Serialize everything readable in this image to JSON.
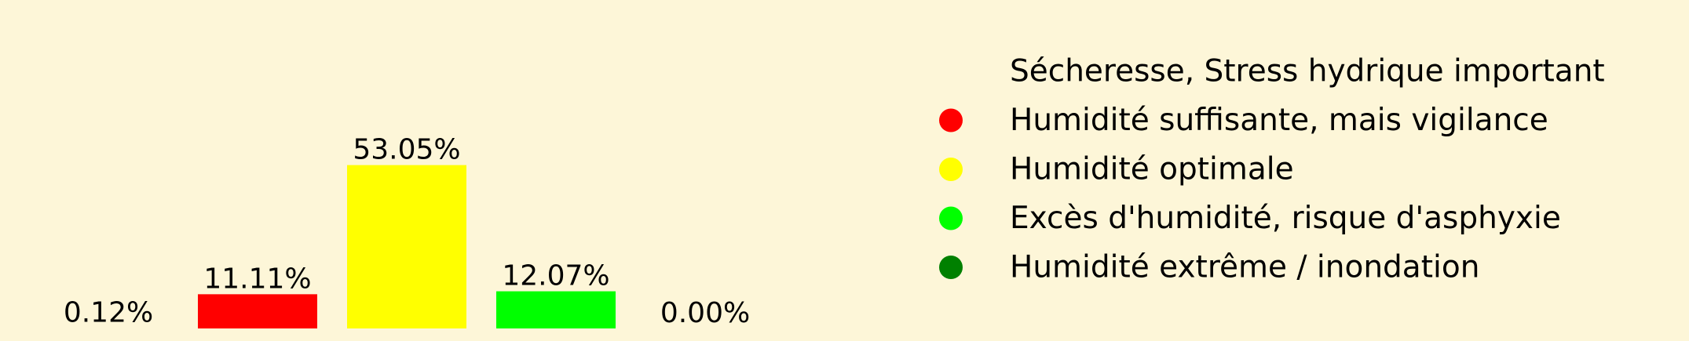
{
  "chart_data": {
    "type": "bar",
    "categories": [
      "Sécheresse, Stress hydrique important",
      "Humidité suffisante, mais vigilance",
      "Humidité optimale",
      "Excès d'humidité, risque d'asphyxie",
      "Humidité extrême / inondation"
    ],
    "values": [
      0.12,
      11.11,
      53.05,
      12.07,
      0.0
    ],
    "value_labels": [
      "0.12%",
      "11.11%",
      "53.05%",
      "12.07%",
      "0.00%"
    ],
    "colors": [
      "#fdf6d8",
      "#ff0000",
      "#ffff00",
      "#00ff00",
      "#008000"
    ],
    "ylim": [
      0,
      56
    ],
    "grid": false,
    "legend_position": "right"
  }
}
